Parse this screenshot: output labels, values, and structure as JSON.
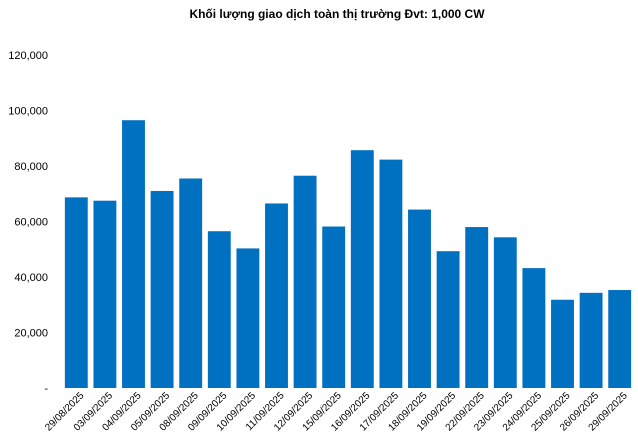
{
  "chart_data": {
    "type": "bar",
    "title": "Khối lượng giao dịch toàn thị trường Đvt: 1,000 CW",
    "xlabel": "",
    "ylabel": "",
    "ylim": [
      0,
      120000
    ],
    "yticks": [
      0,
      20000,
      40000,
      60000,
      80000,
      100000,
      120000
    ],
    "ytick_labels": [
      "-",
      "20,000",
      "40,000",
      "60,000",
      "80,000",
      "100,000",
      "120,000"
    ],
    "grid": false,
    "legend": "none",
    "bar_color": "#0070C0",
    "categories": [
      "29/08/2025",
      "03/09/2025",
      "04/09/2025",
      "05/09/2025",
      "08/09/2025",
      "09/09/2025",
      "10/09/2025",
      "11/09/2025",
      "12/09/2025",
      "15/09/2025",
      "16/09/2025",
      "17/09/2025",
      "18/09/2025",
      "19/09/2025",
      "22/09/2025",
      "23/09/2025",
      "24/09/2025",
      "25/09/2025",
      "26/09/2025",
      "29/09/2025"
    ],
    "values": [
      68700,
      67500,
      96500,
      71000,
      75500,
      56500,
      50300,
      66500,
      76500,
      58200,
      85700,
      82300,
      64300,
      49300,
      58000,
      54300,
      43200,
      31800,
      34300,
      35300
    ]
  }
}
